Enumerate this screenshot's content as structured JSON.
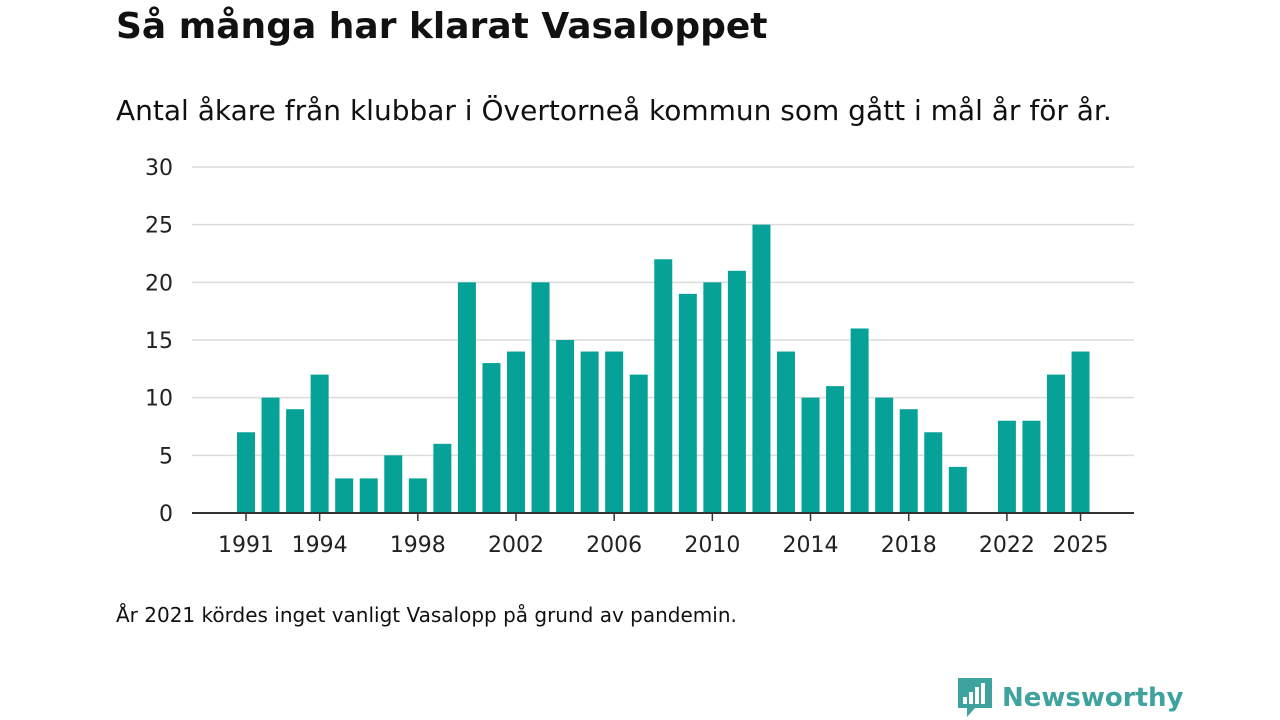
{
  "colors": {
    "bar": "#07a297",
    "grid": "#dcdcdc",
    "axis": "#333333",
    "tick_text": "#222222",
    "brand": "#3ea39f"
  },
  "chart_data": {
    "type": "bar",
    "title": "Så många har klarat Vasaloppet",
    "subtitle": "Antal åkare från klubbar i Övertorneå kommun som gått i mål år för år.",
    "xlabel": "",
    "ylabel": "",
    "ylim": [
      0,
      30
    ],
    "yticks": [
      0,
      5,
      10,
      15,
      20,
      25,
      30
    ],
    "xticks": [
      1991,
      1994,
      1998,
      2002,
      2006,
      2010,
      2014,
      2018,
      2022,
      2025
    ],
    "x_range": [
      1991,
      2025
    ],
    "grid": true,
    "series": [
      {
        "name": "Antal åkare",
        "data": [
          {
            "x": 1991,
            "y": 7
          },
          {
            "x": 1992,
            "y": 10
          },
          {
            "x": 1993,
            "y": 9
          },
          {
            "x": 1994,
            "y": 12
          },
          {
            "x": 1995,
            "y": 3
          },
          {
            "x": 1996,
            "y": 3
          },
          {
            "x": 1997,
            "y": 5
          },
          {
            "x": 1998,
            "y": 3
          },
          {
            "x": 1999,
            "y": 6
          },
          {
            "x": 2000,
            "y": 20
          },
          {
            "x": 2001,
            "y": 13
          },
          {
            "x": 2002,
            "y": 14
          },
          {
            "x": 2003,
            "y": 20
          },
          {
            "x": 2004,
            "y": 15
          },
          {
            "x": 2005,
            "y": 14
          },
          {
            "x": 2006,
            "y": 14
          },
          {
            "x": 2007,
            "y": 12
          },
          {
            "x": 2008,
            "y": 22
          },
          {
            "x": 2009,
            "y": 19
          },
          {
            "x": 2010,
            "y": 20
          },
          {
            "x": 2011,
            "y": 21
          },
          {
            "x": 2012,
            "y": 25
          },
          {
            "x": 2013,
            "y": 14
          },
          {
            "x": 2014,
            "y": 10
          },
          {
            "x": 2015,
            "y": 11
          },
          {
            "x": 2016,
            "y": 16
          },
          {
            "x": 2017,
            "y": 10
          },
          {
            "x": 2018,
            "y": 9
          },
          {
            "x": 2019,
            "y": 7
          },
          {
            "x": 2020,
            "y": 4
          },
          {
            "x": 2022,
            "y": 8
          },
          {
            "x": 2023,
            "y": 8
          },
          {
            "x": 2024,
            "y": 12
          },
          {
            "x": 2025,
            "y": 14
          }
        ]
      }
    ]
  },
  "footnote": "År 2021 kördes inget vanligt Vasalopp på grund av pandemin.",
  "brand": {
    "name": "Newsworthy",
    "icon": "newsworthy-logo-icon"
  }
}
